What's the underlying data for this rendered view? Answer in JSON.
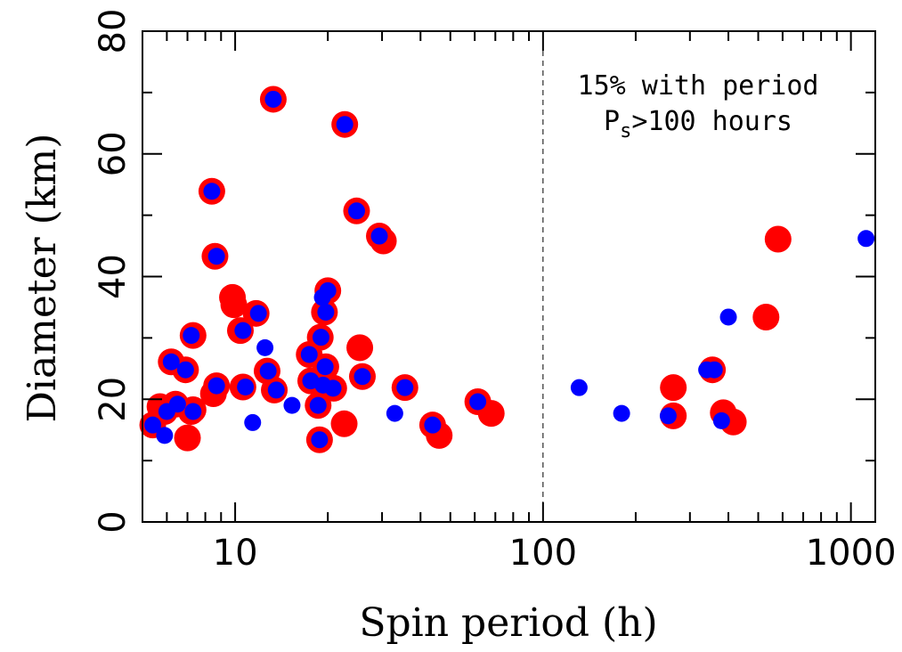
{
  "chart_data": {
    "type": "scatter",
    "xlabel": "Spin period (h)",
    "ylabel": "Diameter (km)",
    "xscale": "log",
    "xlim": [
      5,
      1200
    ],
    "ylim": [
      0,
      80
    ],
    "x_ticks": [
      10,
      100,
      1000
    ],
    "x_tick_labels": [
      "10",
      "100",
      "1000"
    ],
    "y_ticks": [
      0,
      20,
      40,
      60,
      80
    ],
    "y_tick_labels": [
      "0",
      "20",
      "40",
      "60",
      "80"
    ],
    "divider_x": 100,
    "annotation": {
      "line1": "15% with period",
      "line2_main": "P",
      "line2_sub": "s",
      "line2_rest": ">100 hours"
    },
    "colors": {
      "red": "#ff0000",
      "blue": "#0000ff"
    },
    "series": [
      {
        "color": "red",
        "x": [
          5.4,
          5.7,
          5.9,
          6.2,
          6.4,
          6.9,
          7.0,
          7.2,
          7.3,
          7.3,
          8.4,
          8.5,
          8.6,
          8.7,
          9.8,
          9.9,
          10.4,
          10.6,
          11.7,
          12.7,
          13.3,
          13.4,
          17.4,
          17.6,
          18.6,
          18.8,
          18.9,
          19.2,
          19.5,
          19.7,
          19.7,
          20.0,
          20.9,
          22.6,
          22.7,
          24.8,
          25.4,
          25.9,
          29.4,
          30.3,
          35.6,
          43.8,
          46.0,
          61.4,
          67.9,
          265,
          265,
          355,
          385,
          415,
          530,
          580
        ],
        "y": [
          15.8,
          18.8,
          18.0,
          26.1,
          19.2,
          24.8,
          13.7,
          18.0,
          30.4,
          18.3,
          53.9,
          20.9,
          43.3,
          22.2,
          36.6,
          35.4,
          31.2,
          22.0,
          34.0,
          24.6,
          68.9,
          21.5,
          27.3,
          23.0,
          19.0,
          13.4,
          30.1,
          22.3,
          34.2,
          25.3,
          22.0,
          37.7,
          21.8,
          16.0,
          64.8,
          50.7,
          28.4,
          23.7,
          46.6,
          45.8,
          21.9,
          15.8,
          14.1,
          19.6,
          17.7,
          21.9,
          17.3,
          24.8,
          17.8,
          16.3,
          33.4,
          46.1
        ]
      },
      {
        "color": "blue",
        "x": [
          5.4,
          5.9,
          6.0,
          6.2,
          6.5,
          6.9,
          7.2,
          7.3,
          8.4,
          8.7,
          8.7,
          10.6,
          10.8,
          11.4,
          11.9,
          12.5,
          12.8,
          13.3,
          13.6,
          15.3,
          17.4,
          17.6,
          18.6,
          18.8,
          19.0,
          19.2,
          19.3,
          19.6,
          19.7,
          20.0,
          20.8,
          22.7,
          24.8,
          25.9,
          29.4,
          33.0,
          35.6,
          43.8,
          61.4,
          131,
          180,
          255,
          340,
          360,
          380,
          400,
          1120
        ],
        "y": [
          15.8,
          14.1,
          18.0,
          26.1,
          19.2,
          24.8,
          30.4,
          18.0,
          53.9,
          43.3,
          22.2,
          31.2,
          22.0,
          16.2,
          34.0,
          28.4,
          24.6,
          68.9,
          21.5,
          19.0,
          27.3,
          23.0,
          19.0,
          13.4,
          30.1,
          36.6,
          22.3,
          25.3,
          34.2,
          37.7,
          21.8,
          64.8,
          50.7,
          23.7,
          46.6,
          17.7,
          21.9,
          15.8,
          19.6,
          21.9,
          17.7,
          17.3,
          24.8,
          24.8,
          16.5,
          33.4,
          46.2
        ]
      }
    ]
  }
}
